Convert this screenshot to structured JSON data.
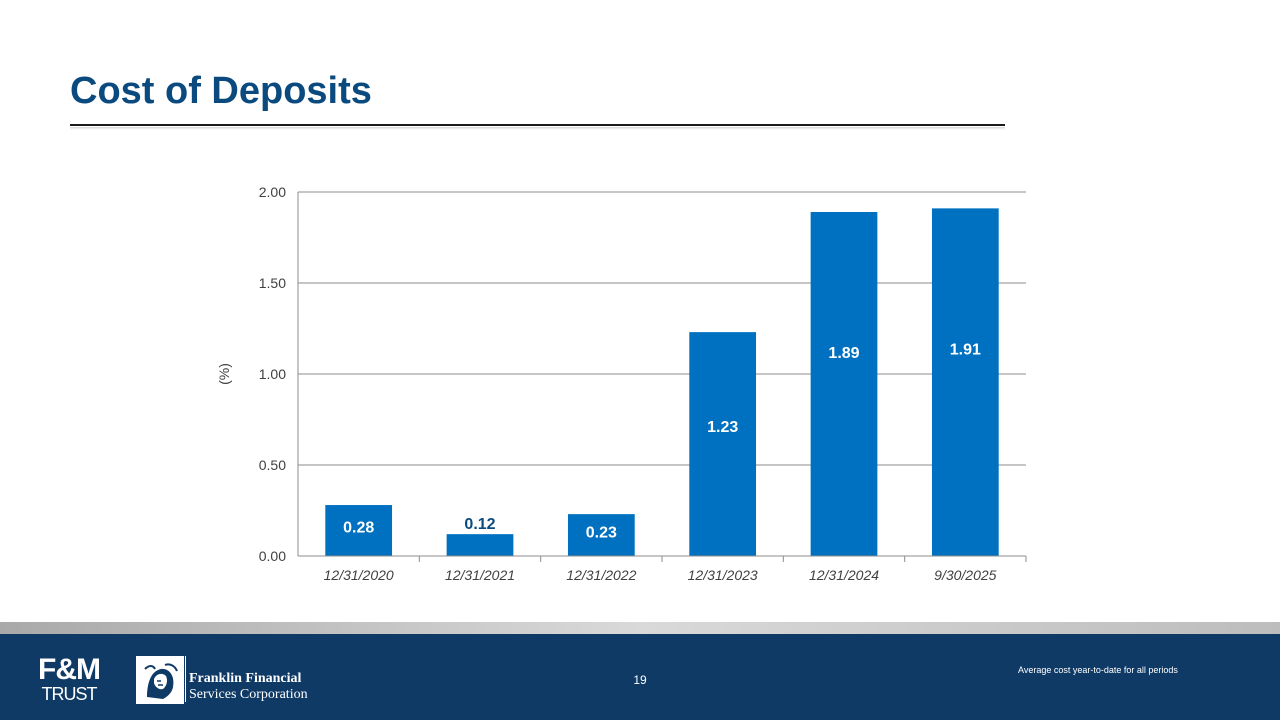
{
  "slide": {
    "title": "Cost of Deposits",
    "page_number": "19",
    "footnote": "Average cost year-to-date for all periods"
  },
  "branding": {
    "fm_logo_line1": "F&M",
    "fm_logo_line2": "TRUST",
    "ffsc_line1": "Franklin Financial",
    "ffsc_line2": "Services Corporation"
  },
  "colors": {
    "title": "#0a4a7f",
    "bar": "#0070c0",
    "footer": "#0f3a66"
  },
  "chart_data": {
    "type": "bar",
    "categories": [
      "12/31/2020",
      "12/31/2021",
      "12/31/2022",
      "12/31/2023",
      "12/31/2024",
      "9/30/2025"
    ],
    "series": [
      {
        "values": [
          0.28,
          0.12,
          0.23,
          1.23,
          1.89,
          1.91
        ]
      }
    ],
    "data_labels": [
      "0.28",
      "0.12",
      "0.23",
      "1.23",
      "1.89",
      "1.91"
    ],
    "ylabel": "(%)",
    "ylim": [
      0,
      2.0
    ],
    "yticks": [
      0,
      0.5,
      1.0,
      1.5,
      2.0
    ],
    "ytick_labels": [
      "0.00",
      "0.50",
      "1.00",
      "1.50",
      "2.00"
    ],
    "grid": true,
    "legend": "none"
  }
}
